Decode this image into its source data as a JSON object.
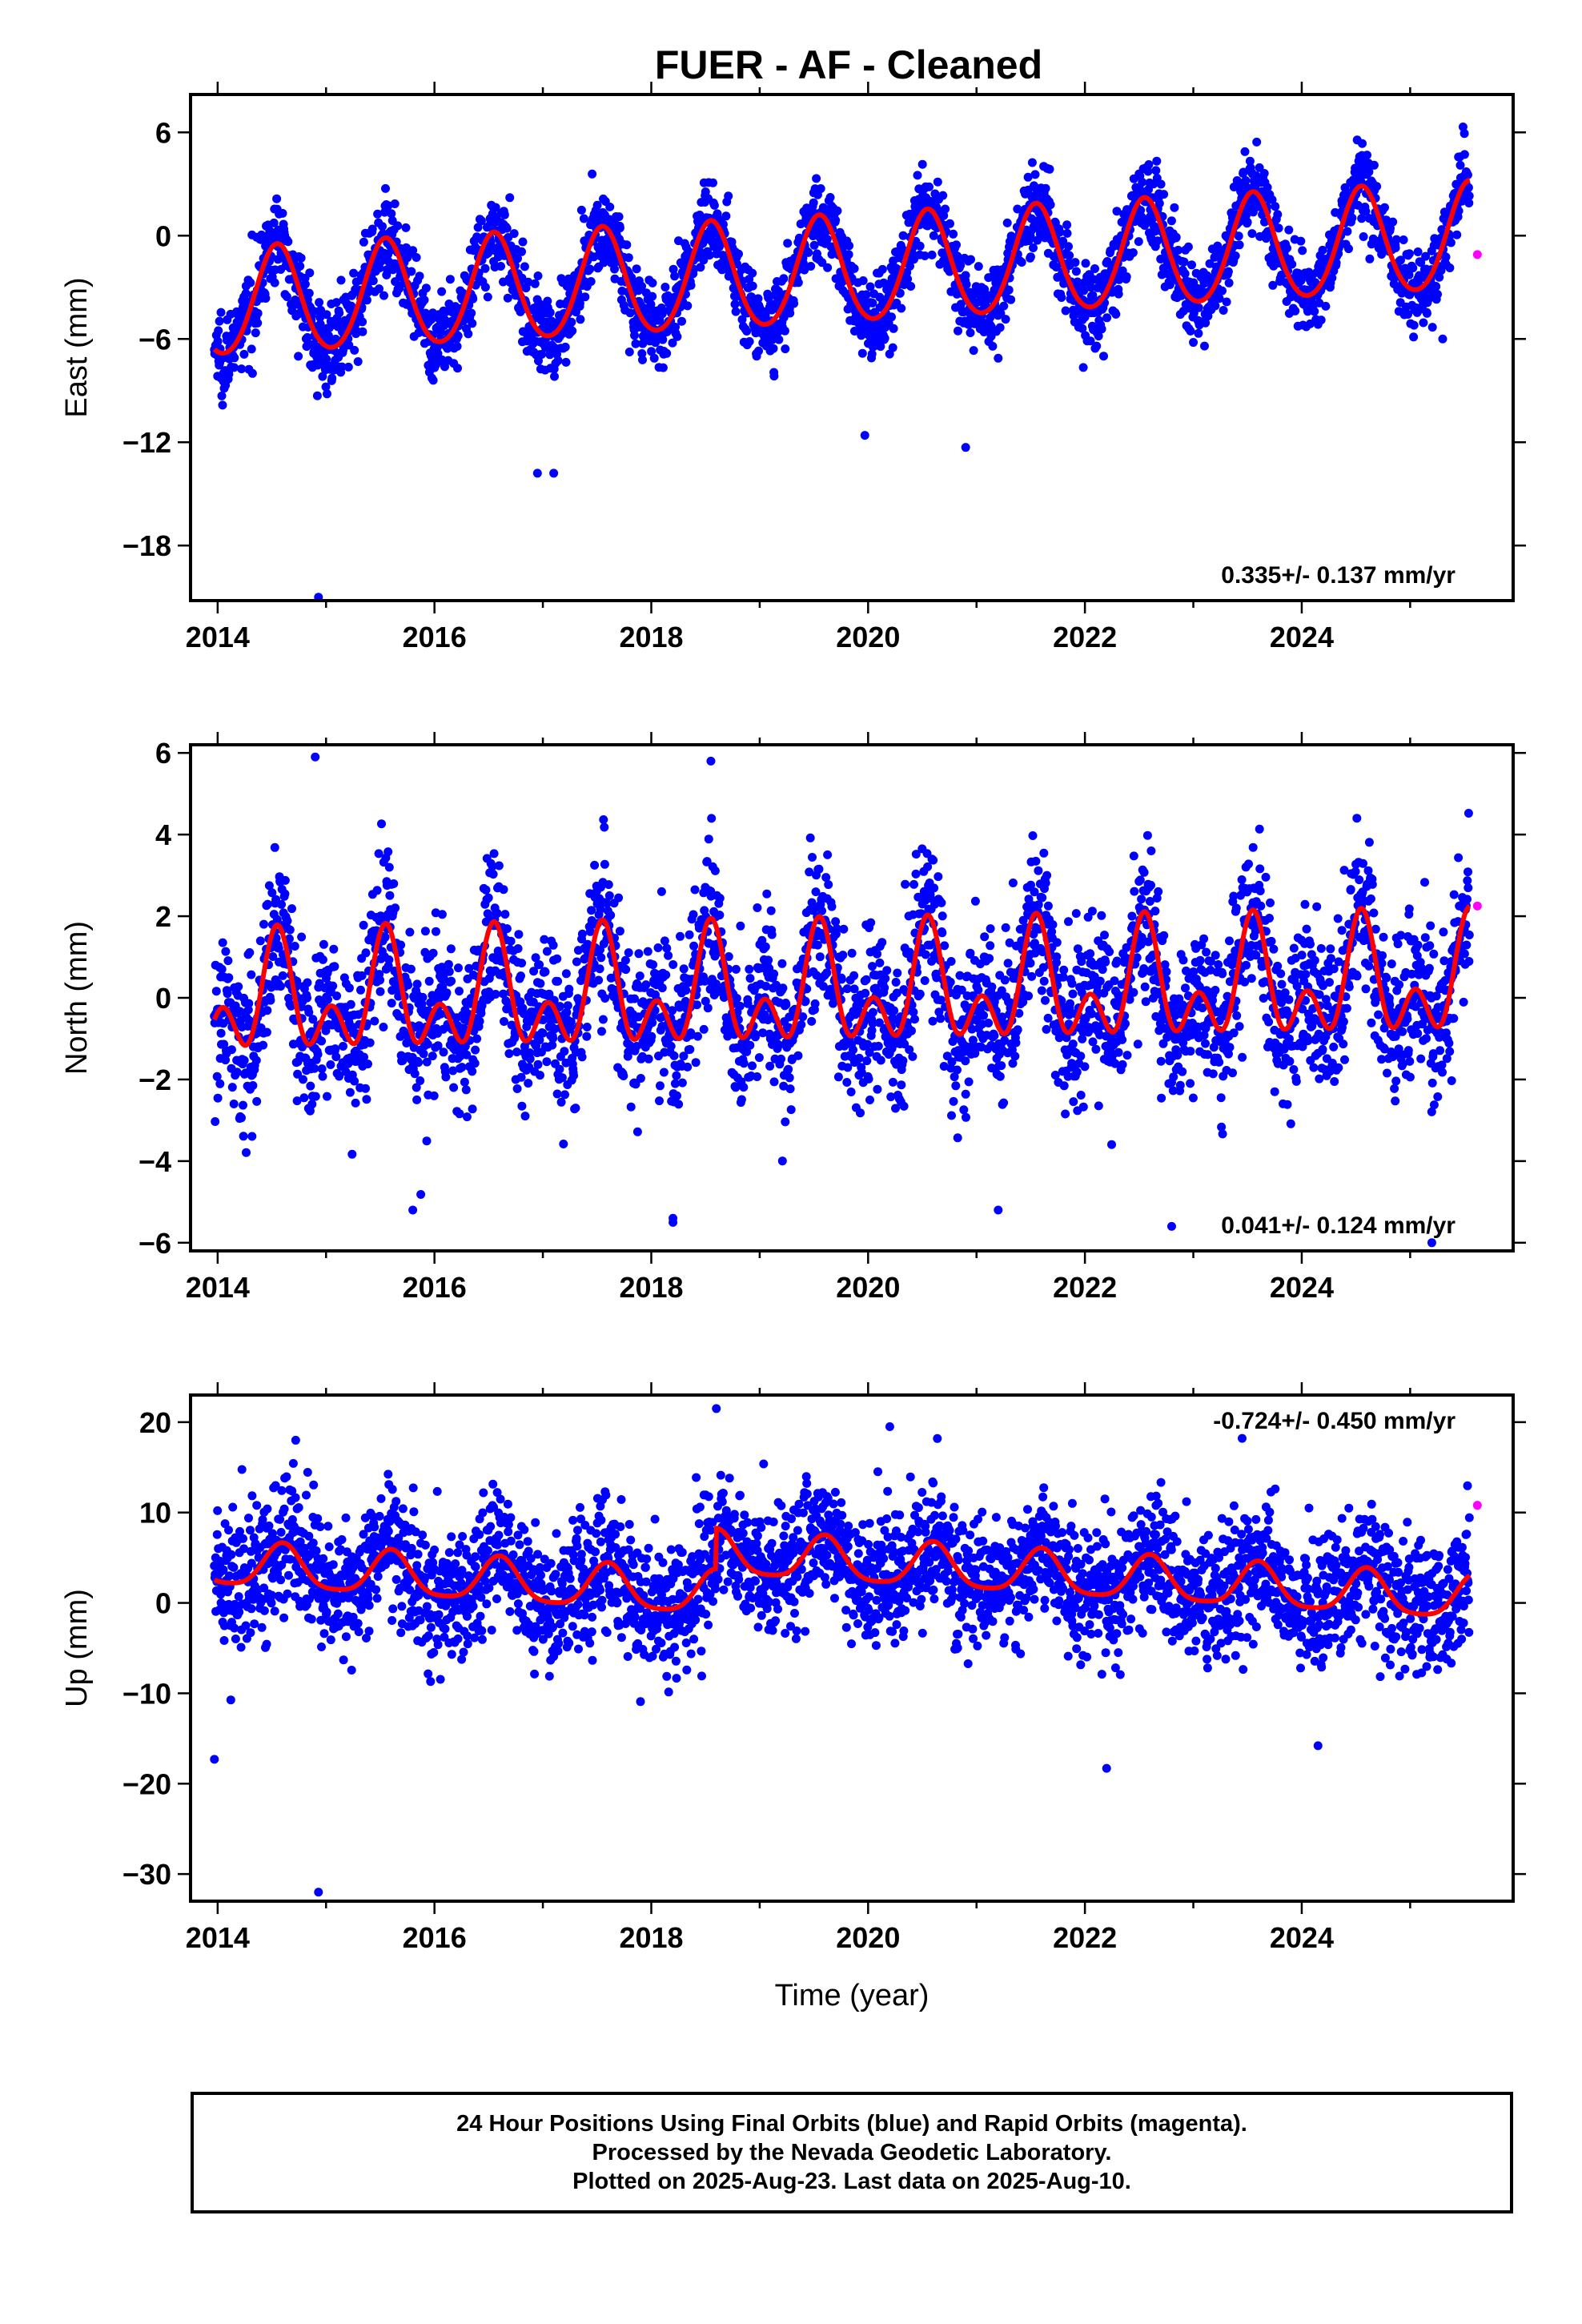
{
  "title": "FUER  - AF - Cleaned",
  "footer": {
    "line1": "24 Hour Positions Using Final Orbits (blue) and Rapid Orbits (magenta).",
    "line2": "Processed by the Nevada Geodetic Laboratory.",
    "line3": "Plotted on 2025-Aug-23. Last data on 2025-Aug-10."
  },
  "colors": {
    "final": "#0000ff",
    "rapid": "#ff00ff",
    "model": "#ff0000"
  },
  "chart_data": [
    {
      "type": "scatter",
      "component": "East",
      "ylabel": "East (mm)",
      "xlabel": "",
      "xlim": [
        2013.75,
        2025.95
      ],
      "ylim": [
        -21.2,
        8.2
      ],
      "xticks": [
        2014,
        2016,
        2018,
        2020,
        2022,
        2024
      ],
      "yticks": [
        6,
        0,
        -6,
        -12,
        -18
      ],
      "ytick_labels": [
        "6",
        "0",
        "−6",
        "−12",
        "−18"
      ],
      "rate_text": "0.335+/- 0.137 mm/yr",
      "rate_position": "bottom-right",
      "model": {
        "offset": -2.1,
        "trend": 0.335,
        "t0": 2019.8,
        "annual_amp": 3.1,
        "annual_peak": 2014.55,
        "semiannual_amp": 0.3,
        "noise_sd": 1.2
      },
      "outliers": [
        [
          2014.92,
          -9.3
        ],
        [
          2014.93,
          -21
        ],
        [
          2016.95,
          -13.8
        ],
        [
          2017.1,
          -13.8
        ],
        [
          2019.97,
          -11.6
        ],
        [
          2020.9,
          -12.3
        ],
        [
          2023.0,
          -6.2
        ],
        [
          2025.3,
          -6.0
        ]
      ],
      "rapid_points": [
        [
          2025.62,
          -1.1
        ]
      ]
    },
    {
      "type": "scatter",
      "component": "North",
      "ylabel": "North (mm)",
      "xlabel": "",
      "xlim": [
        2013.75,
        2025.95
      ],
      "ylim": [
        -6.2,
        6.2
      ],
      "xticks": [
        2014,
        2016,
        2018,
        2020,
        2022,
        2024
      ],
      "yticks": [
        6,
        4,
        2,
        0,
        -2,
        -4,
        -6
      ],
      "ytick_labels": [
        "6",
        "4",
        "2",
        "0",
        "−2",
        "−4",
        "−6"
      ],
      "rate_text": "0.041+/- 0.124 mm/yr",
      "rate_position": "bottom-right",
      "model": {
        "offset": 0.1,
        "trend": 0.041,
        "t0": 2019.8,
        "annual_amp": 1.0,
        "annual_peak": 2014.55,
        "semiannual_amp": 0.9,
        "noise_sd": 0.95
      },
      "outliers": [
        [
          2014.9,
          5.9
        ],
        [
          2018.55,
          5.8
        ],
        [
          2015.8,
          -5.2
        ],
        [
          2018.2,
          -5.5
        ],
        [
          2018.2,
          -5.4
        ],
        [
          2021.2,
          -5.2
        ],
        [
          2022.8,
          -5.6
        ],
        [
          2025.2,
          -6.0
        ]
      ],
      "rapid_points": [
        [
          2025.62,
          2.25
        ]
      ]
    },
    {
      "type": "scatter",
      "component": "Up",
      "ylabel": "Up (mm)",
      "xlabel": "Time (year)",
      "xlim": [
        2013.75,
        2025.95
      ],
      "ylim": [
        -33,
        23
      ],
      "xticks": [
        2014,
        2016,
        2018,
        2020,
        2022,
        2024
      ],
      "yticks": [
        20,
        10,
        0,
        -10,
        -20,
        -30
      ],
      "ytick_labels": [
        "20",
        "10",
        "0",
        "−10",
        "−20",
        "−30"
      ],
      "rate_text": "-0.724+/- 0.450 mm/yr",
      "rate_position": "top-right",
      "model": {
        "offset": 0.0,
        "trend": -0.724,
        "t0": 2019.8,
        "annual_amp": 2.4,
        "annual_peak": 2014.6,
        "semiannual_amp": 0.5,
        "noise_sd": 3.6,
        "step_epoch": 2018.6,
        "step_size": 4.5
      },
      "outliers": [
        [
          2013.97,
          -17.3
        ],
        [
          2014.93,
          -32
        ],
        [
          2018.6,
          21.5
        ],
        [
          2020.2,
          19.5
        ],
        [
          2022.2,
          -18.3
        ],
        [
          2023.45,
          18.2
        ],
        [
          2024.15,
          -15.8
        ],
        [
          2014.72,
          18
        ]
      ],
      "rapid_points": [
        [
          2025.62,
          10.8
        ]
      ]
    }
  ]
}
